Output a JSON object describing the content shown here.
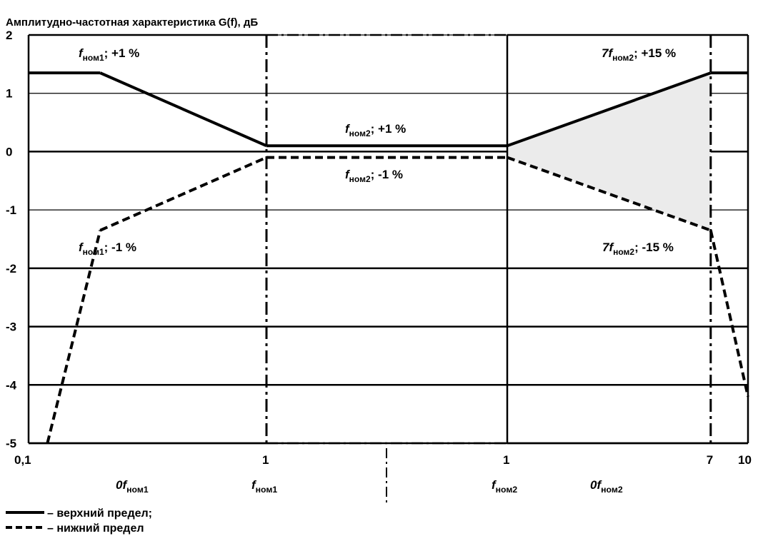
{
  "chart_data": {
    "type": "line",
    "title": "Амплитудно-частотная характеристика G(f), дБ",
    "y_ticks": [
      "2",
      "1",
      "0",
      "-1",
      "-2",
      "-3",
      "-4",
      "-5"
    ],
    "ylim": [
      -5,
      2
    ],
    "x_segments": [
      {
        "name": "left",
        "scale": "log",
        "xlim": [
          0.1,
          1
        ],
        "tick_labels": [
          "0,1",
          "1"
        ],
        "axis_labels": [
          "0f_ном1",
          "f_ном1"
        ]
      },
      {
        "name": "middle",
        "scale": "linear",
        "tick_labels": [],
        "axis_labels": []
      },
      {
        "name": "right",
        "scale": "log",
        "xlim": [
          1,
          10
        ],
        "tick_labels": [
          "1",
          "7",
          "10"
        ],
        "axis_labels": [
          "f_ном2",
          "0f_ном2"
        ]
      }
    ],
    "series": [
      {
        "name": "верхний предел",
        "style": "solid",
        "points": [
          {
            "segment": "left",
            "x": 0.1,
            "y": 1.35
          },
          {
            "segment": "left",
            "x": 0.2,
            "y": 1.35
          },
          {
            "segment": "left",
            "x": 1,
            "y": 0.1
          },
          {
            "segment": "right",
            "x": 1,
            "y": 0.1
          },
          {
            "segment": "right",
            "x": 7,
            "y": 1.35
          },
          {
            "segment": "right",
            "x": 10,
            "y": 1.35
          }
        ]
      },
      {
        "name": "нижний предел",
        "style": "dashed",
        "points": [
          {
            "segment": "left",
            "x": 0.12,
            "y": -5
          },
          {
            "segment": "left",
            "x": 0.2,
            "y": -1.35
          },
          {
            "segment": "left",
            "x": 1,
            "y": -0.1
          },
          {
            "segment": "right",
            "x": 1,
            "y": -0.1
          },
          {
            "segment": "right",
            "x": 7,
            "y": -1.35
          },
          {
            "segment": "right",
            "x": 10,
            "y": -4.2
          }
        ]
      }
    ],
    "annotations": [
      {
        "main": "f",
        "sub": "ном1",
        "rest": "; +1 %"
      },
      {
        "main": "f",
        "sub": "ном2",
        "rest": "; +1 %"
      },
      {
        "main": "7f",
        "sub": "ном2",
        "rest": "; +15 %"
      },
      {
        "main": "f",
        "sub": "ном1",
        "rest": "; -1 %"
      },
      {
        "main": "f",
        "sub": "ном2",
        "rest": "; -1 %"
      },
      {
        "main": "7f",
        "sub": "ном2",
        "rest": "; -15 %"
      }
    ],
    "shaded_region": {
      "segment": "right",
      "x_from": 1,
      "x_to": 7,
      "color": "#ebebeb"
    },
    "legend": [
      {
        "style": "solid",
        "label": "– верхний предел;"
      },
      {
        "style": "dashed",
        "label": "– нижний предел"
      }
    ],
    "legend_position": "bottom-left"
  }
}
